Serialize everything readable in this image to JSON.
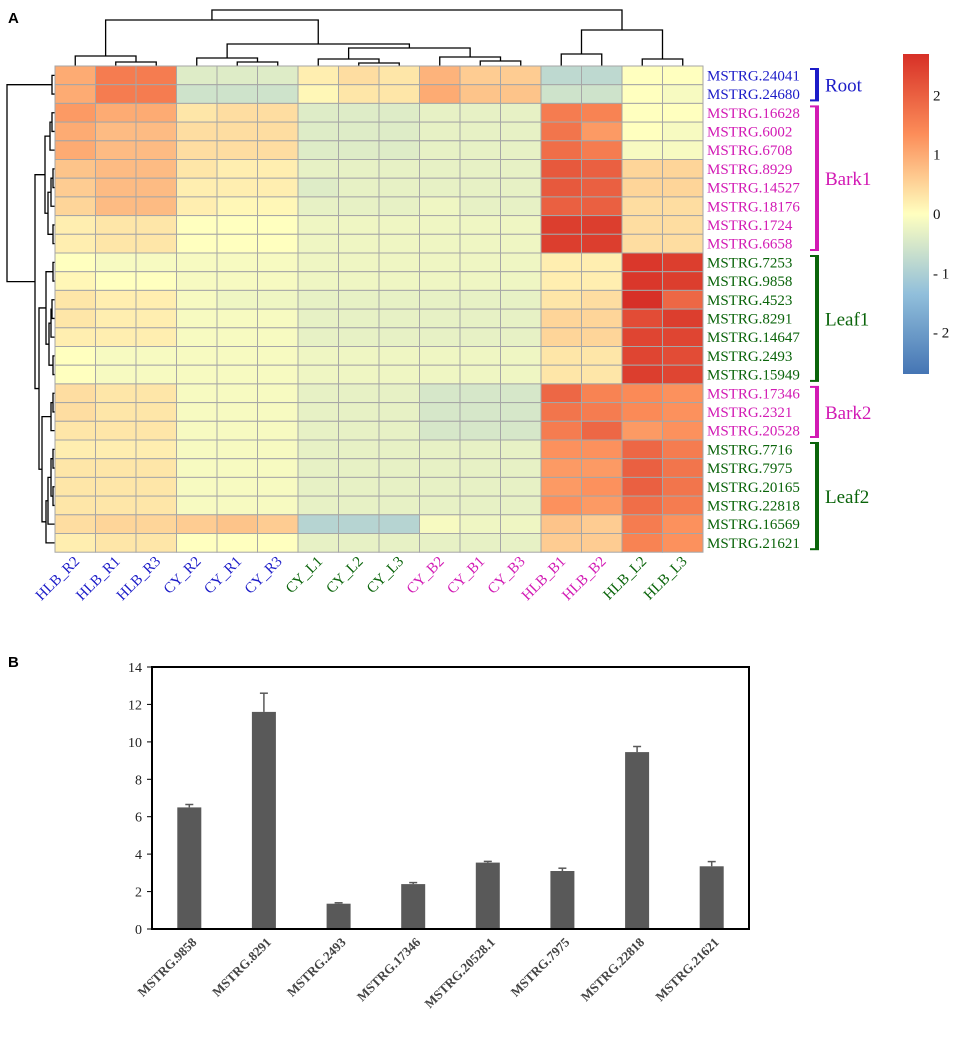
{
  "panels": {
    "a_label": "A",
    "b_label": "B"
  },
  "colors": {
    "Root": "#1c1cc8",
    "Bark": "#d21ab4",
    "Leaf": "#0a640a",
    "bar": "#595959",
    "grid": "#a6a6a6"
  },
  "chart_data": [
    {
      "type": "heatmap",
      "title": "",
      "columns": [
        {
          "label": "HLB_R2",
          "group": "Root"
        },
        {
          "label": "HLB_R1",
          "group": "Root"
        },
        {
          "label": "HLB_R3",
          "group": "Root"
        },
        {
          "label": "CY_R2",
          "group": "Root"
        },
        {
          "label": "CY_R1",
          "group": "Root"
        },
        {
          "label": "CY_R3",
          "group": "Root"
        },
        {
          "label": "CY_L1",
          "group": "Leaf"
        },
        {
          "label": "CY_L2",
          "group": "Leaf"
        },
        {
          "label": "CY_L3",
          "group": "Leaf"
        },
        {
          "label": "CY_B2",
          "group": "Bark"
        },
        {
          "label": "CY_B1",
          "group": "Bark"
        },
        {
          "label": "CY_B3",
          "group": "Bark"
        },
        {
          "label": "HLB_B1",
          "group": "Bark"
        },
        {
          "label": "HLB_B2",
          "group": "Bark"
        },
        {
          "label": "HLB_L2",
          "group": "Leaf"
        },
        {
          "label": "HLB_L3",
          "group": "Leaf"
        }
      ],
      "rows": [
        {
          "label": "MSTRG.24041",
          "group": "Root",
          "values": [
            1.0,
            1.6,
            1.6,
            -0.4,
            -0.4,
            -0.4,
            0.2,
            0.4,
            0.3,
            0.9,
            0.6,
            0.6,
            -0.8,
            -0.8,
            0.0,
            0.0
          ]
        },
        {
          "label": "MSTRG.24680",
          "group": "Root",
          "values": [
            1.0,
            1.6,
            1.6,
            -0.6,
            -0.6,
            -0.6,
            0.1,
            0.3,
            0.3,
            1.0,
            0.7,
            0.7,
            -0.6,
            -0.6,
            0.0,
            -0.1
          ]
        },
        {
          "label": "MSTRG.16628",
          "group": "Bark",
          "values": [
            1.2,
            1.0,
            1.0,
            0.3,
            0.4,
            0.4,
            -0.4,
            -0.4,
            -0.4,
            -0.3,
            -0.3,
            -0.3,
            1.6,
            1.5,
            0.0,
            0.0
          ]
        },
        {
          "label": "MSTRG.6002",
          "group": "Bark",
          "values": [
            1.0,
            0.8,
            0.8,
            0.4,
            0.4,
            0.4,
            -0.4,
            -0.4,
            -0.4,
            -0.3,
            -0.3,
            -0.3,
            1.7,
            1.2,
            0.0,
            -0.1
          ]
        },
        {
          "label": "MSTRG.6708",
          "group": "Bark",
          "values": [
            1.0,
            0.8,
            0.8,
            0.4,
            0.4,
            0.4,
            -0.4,
            -0.4,
            -0.4,
            -0.3,
            -0.3,
            -0.3,
            1.8,
            1.6,
            -0.1,
            -0.1
          ]
        },
        {
          "label": "MSTRG.8929",
          "group": "Bark",
          "values": [
            0.7,
            0.8,
            0.8,
            0.3,
            0.2,
            0.2,
            -0.3,
            -0.3,
            -0.3,
            -0.3,
            -0.3,
            -0.3,
            2.1,
            2.0,
            0.5,
            0.5
          ]
        },
        {
          "label": "MSTRG.14527",
          "group": "Bark",
          "values": [
            0.6,
            0.8,
            0.8,
            0.2,
            0.2,
            0.2,
            -0.4,
            -0.3,
            -0.3,
            -0.3,
            -0.3,
            -0.3,
            2.1,
            2.0,
            0.5,
            0.5
          ]
        },
        {
          "label": "MSTRG.18176",
          "group": "Bark",
          "values": [
            0.5,
            0.8,
            0.8,
            0.2,
            0.1,
            0.1,
            -0.3,
            -0.3,
            -0.3,
            -0.2,
            -0.3,
            -0.3,
            2.0,
            2.0,
            0.4,
            0.4
          ]
        },
        {
          "label": "MSTRG.1724",
          "group": "Bark",
          "values": [
            0.2,
            0.3,
            0.3,
            0.0,
            0.0,
            0.0,
            -0.2,
            -0.2,
            -0.2,
            -0.2,
            -0.2,
            -0.2,
            2.5,
            2.5,
            0.4,
            0.4
          ]
        },
        {
          "label": "MSTRG.6658",
          "group": "Bark",
          "values": [
            0.2,
            0.3,
            0.3,
            0.0,
            0.0,
            0.0,
            -0.2,
            -0.2,
            -0.2,
            -0.2,
            -0.2,
            -0.2,
            2.5,
            2.5,
            0.4,
            0.4
          ]
        },
        {
          "label": "MSTRG.7253",
          "group": "Leaf",
          "values": [
            0.0,
            -0.1,
            -0.1,
            -0.1,
            -0.1,
            -0.1,
            -0.2,
            -0.2,
            -0.2,
            -0.2,
            -0.2,
            -0.2,
            0.2,
            0.2,
            2.6,
            2.5
          ]
        },
        {
          "label": "MSTRG.9858",
          "group": "Leaf",
          "values": [
            0.1,
            0.0,
            0.0,
            -0.1,
            -0.1,
            -0.1,
            -0.2,
            -0.2,
            -0.2,
            -0.2,
            -0.2,
            -0.2,
            0.2,
            0.2,
            2.6,
            2.5
          ]
        },
        {
          "label": "MSTRG.4523",
          "group": "Leaf",
          "values": [
            0.3,
            0.2,
            0.2,
            -0.1,
            -0.2,
            -0.2,
            -0.3,
            -0.3,
            -0.3,
            -0.3,
            -0.3,
            -0.3,
            0.3,
            0.4,
            2.7,
            1.9
          ]
        },
        {
          "label": "MSTRG.8291",
          "group": "Leaf",
          "values": [
            0.3,
            0.2,
            0.2,
            -0.1,
            -0.1,
            -0.1,
            -0.3,
            -0.3,
            -0.3,
            -0.3,
            -0.3,
            -0.3,
            0.5,
            0.5,
            2.3,
            2.5
          ]
        },
        {
          "label": "MSTRG.14647",
          "group": "Leaf",
          "values": [
            0.2,
            0.2,
            0.2,
            -0.1,
            -0.1,
            -0.1,
            -0.3,
            -0.3,
            -0.3,
            -0.3,
            -0.3,
            -0.3,
            0.5,
            0.5,
            2.4,
            2.4
          ]
        },
        {
          "label": "MSTRG.2493",
          "group": "Leaf",
          "values": [
            0.0,
            -0.1,
            -0.1,
            -0.1,
            -0.1,
            -0.1,
            -0.2,
            -0.2,
            -0.2,
            -0.2,
            -0.2,
            -0.2,
            0.3,
            0.3,
            2.4,
            2.3
          ]
        },
        {
          "label": "MSTRG.15949",
          "group": "Leaf",
          "values": [
            0.0,
            -0.1,
            -0.1,
            -0.1,
            -0.1,
            -0.1,
            -0.2,
            -0.2,
            -0.2,
            -0.2,
            -0.2,
            -0.2,
            0.3,
            0.3,
            2.5,
            2.4
          ]
        },
        {
          "label": "MSTRG.17346",
          "group": "Bark",
          "values": [
            0.4,
            0.3,
            0.3,
            -0.1,
            -0.1,
            -0.1,
            -0.3,
            -0.3,
            -0.3,
            -0.5,
            -0.5,
            -0.5,
            1.9,
            1.5,
            1.4,
            1.3
          ]
        },
        {
          "label": "MSTRG.2321",
          "group": "Bark",
          "values": [
            0.4,
            0.3,
            0.3,
            -0.1,
            -0.1,
            -0.1,
            -0.3,
            -0.3,
            -0.3,
            -0.5,
            -0.5,
            -0.5,
            1.7,
            1.6,
            1.4,
            1.3
          ]
        },
        {
          "label": "MSTRG.20528",
          "group": "Bark",
          "values": [
            0.3,
            0.3,
            0.3,
            -0.1,
            -0.1,
            -0.1,
            -0.3,
            -0.3,
            -0.3,
            -0.5,
            -0.5,
            -0.5,
            1.6,
            1.9,
            1.2,
            1.3
          ]
        },
        {
          "label": "MSTRG.7716",
          "group": "Leaf",
          "values": [
            0.2,
            0.2,
            0.2,
            -0.1,
            -0.1,
            -0.1,
            -0.3,
            -0.3,
            -0.3,
            -0.3,
            -0.3,
            -0.3,
            1.3,
            1.3,
            1.9,
            1.6
          ]
        },
        {
          "label": "MSTRG.7975",
          "group": "Leaf",
          "values": [
            0.3,
            0.3,
            0.3,
            -0.1,
            -0.1,
            -0.1,
            -0.3,
            -0.3,
            -0.3,
            -0.3,
            -0.3,
            -0.3,
            1.2,
            1.2,
            2.0,
            1.7
          ]
        },
        {
          "label": "MSTRG.20165",
          "group": "Leaf",
          "values": [
            0.3,
            0.3,
            0.3,
            -0.1,
            -0.1,
            -0.1,
            -0.3,
            -0.3,
            -0.3,
            -0.3,
            -0.3,
            -0.3,
            1.2,
            1.3,
            2.0,
            1.7
          ]
        },
        {
          "label": "MSTRG.22818",
          "group": "Leaf",
          "values": [
            0.3,
            0.3,
            0.3,
            -0.1,
            -0.1,
            -0.1,
            -0.3,
            -0.3,
            -0.3,
            -0.3,
            -0.3,
            -0.3,
            1.3,
            1.2,
            1.8,
            1.6
          ]
        },
        {
          "label": "MSTRG.16569",
          "group": "Leaf",
          "values": [
            0.4,
            0.5,
            0.5,
            0.6,
            0.7,
            0.6,
            -0.9,
            -0.9,
            -0.9,
            -0.1,
            -0.2,
            -0.2,
            0.7,
            0.6,
            1.6,
            1.3
          ]
        },
        {
          "label": "MSTRG.21621",
          "group": "Leaf",
          "values": [
            0.2,
            0.3,
            0.3,
            0.0,
            0.0,
            0.0,
            -0.3,
            -0.3,
            -0.3,
            -0.3,
            -0.3,
            -0.3,
            0.6,
            0.6,
            1.5,
            1.3
          ]
        }
      ],
      "row_groups": [
        {
          "label": "Root",
          "color_key": "Root",
          "first_row": 0,
          "last_row": 1
        },
        {
          "label": "Bark1",
          "color_key": "Bark",
          "first_row": 2,
          "last_row": 9
        },
        {
          "label": "Leaf1",
          "color_key": "Leaf",
          "first_row": 10,
          "last_row": 16
        },
        {
          "label": "Bark2",
          "color_key": "Bark",
          "first_row": 17,
          "last_row": 19
        },
        {
          "label": "Leaf2",
          "color_key": "Leaf",
          "first_row": 20,
          "last_row": 25
        }
      ],
      "colorbar": {
        "range": [
          -2.7,
          2.7
        ],
        "ticks": [
          {
            "value": 2,
            "label": "2"
          },
          {
            "value": 1,
            "label": "1"
          },
          {
            "value": 0,
            "label": "0"
          },
          {
            "value": -1,
            "label": "- 1"
          },
          {
            "value": -2,
            "label": "- 2"
          }
        ],
        "stops": [
          {
            "value": -2.7,
            "color": "#4575b4"
          },
          {
            "value": -1.35,
            "color": "#91bfdb"
          },
          {
            "value": 0,
            "color": "#ffffbf"
          },
          {
            "value": 1.35,
            "color": "#fc8d59"
          },
          {
            "value": 2.7,
            "color": "#d73027"
          }
        ]
      },
      "column_dendrogram": true,
      "row_dendrogram": true
    },
    {
      "type": "bar",
      "title": "",
      "xlabel": "",
      "ylabel": "",
      "ylim": [
        0,
        14
      ],
      "yticks": [
        0,
        2,
        4,
        6,
        8,
        10,
        12,
        14
      ],
      "categories": [
        "MSTRG.9858",
        "MSTRG.8291",
        "MSTRG.2493",
        "MSTRG.17346",
        "MSTRG.20528.1",
        "MSTRG.7975",
        "MSTRG.22818",
        "MSTRG.21621"
      ],
      "values": [
        6.5,
        11.6,
        1.35,
        2.4,
        3.55,
        3.1,
        9.45,
        3.35
      ],
      "errors": [
        0.15,
        1.0,
        0.05,
        0.08,
        0.06,
        0.15,
        0.3,
        0.25
      ]
    }
  ]
}
